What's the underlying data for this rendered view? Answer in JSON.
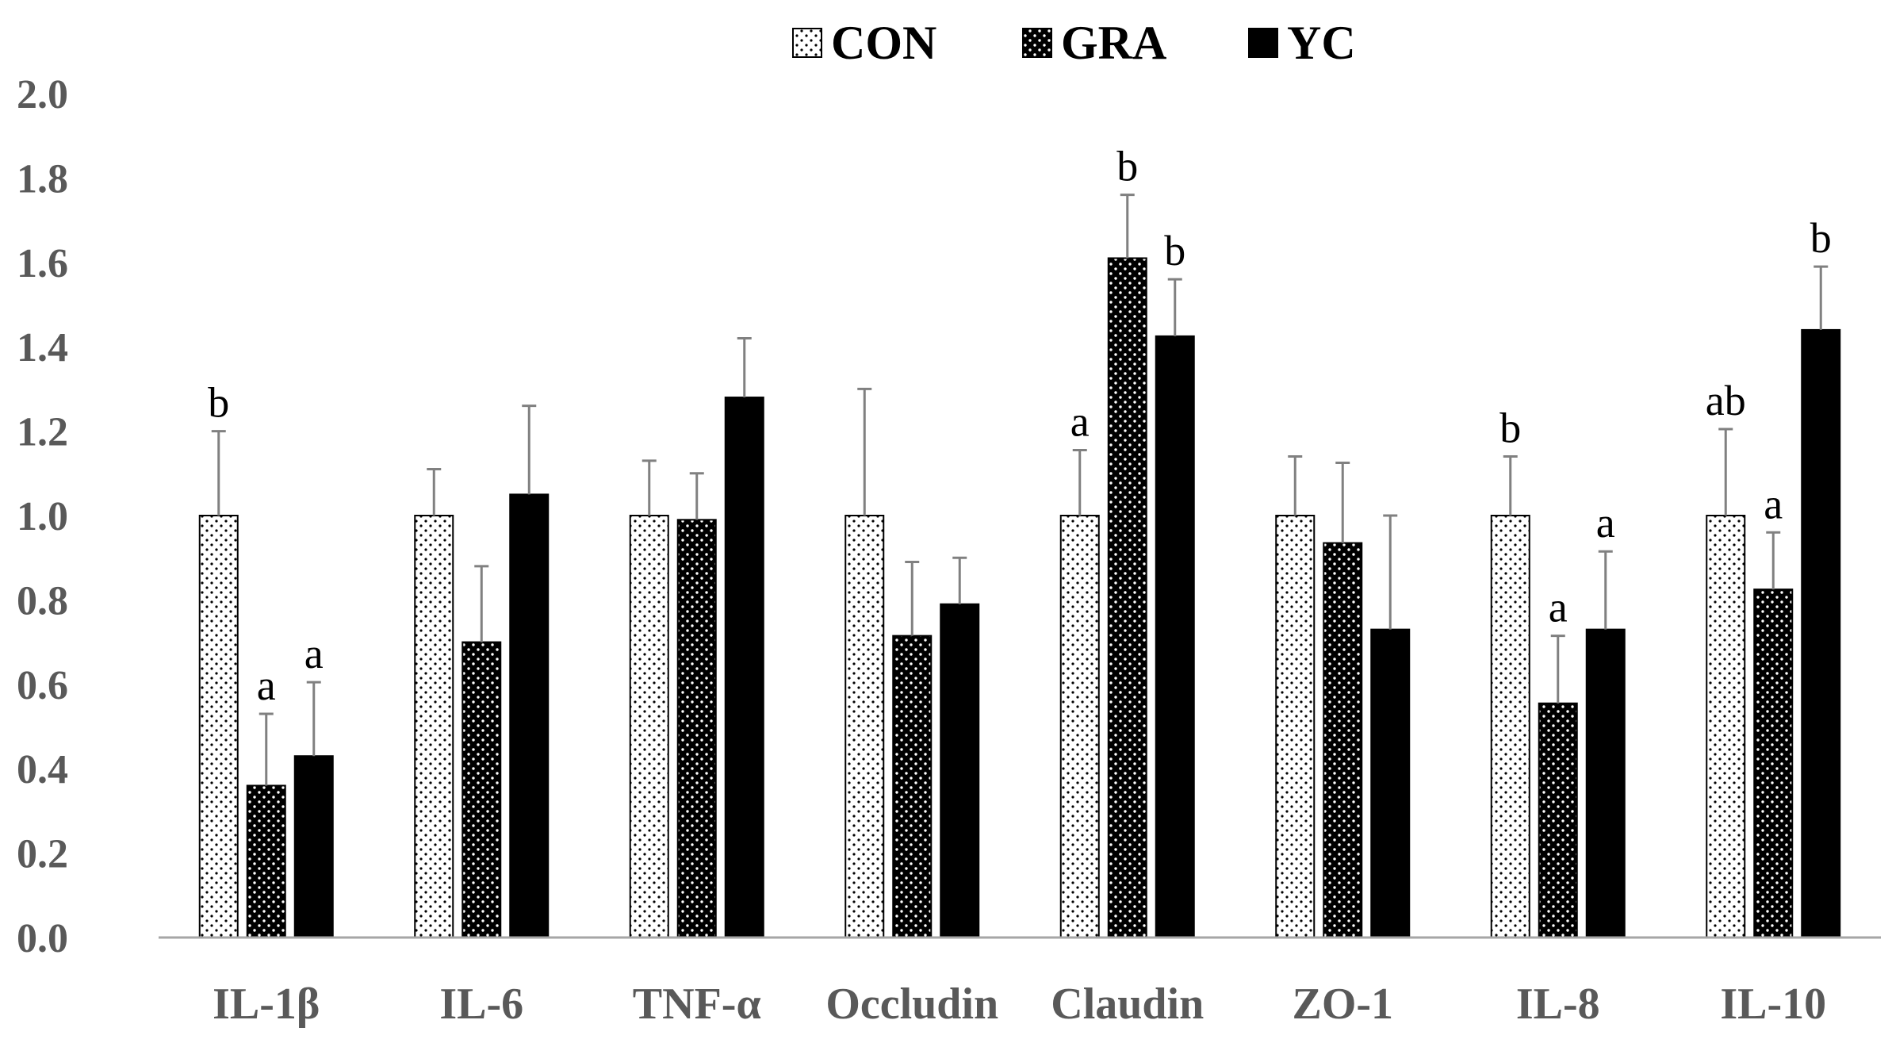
{
  "chart_data": {
    "type": "bar",
    "title": "",
    "xlabel": "",
    "ylabel": "",
    "ylim": [
      0,
      2.0
    ],
    "yticks": [
      "0.0",
      "0.2",
      "0.4",
      "0.6",
      "0.8",
      "1.0",
      "1.2",
      "1.4",
      "1.6",
      "1.8",
      "2.0"
    ],
    "grid": false,
    "legend_position": "top-center",
    "categories": [
      "IL-1β",
      "IL-6",
      "TNF-α",
      "Occludin",
      "Claudin",
      "ZO-1",
      "IL-8",
      "IL-10"
    ],
    "series": [
      {
        "name": "CON",
        "pattern": "sparse-dots",
        "values": [
          1.0,
          1.0,
          1.0,
          1.0,
          1.0,
          1.0,
          1.0,
          1.0
        ],
        "errors": [
          0.2,
          0.11,
          0.13,
          0.3,
          0.155,
          0.14,
          0.14,
          0.205
        ],
        "labels": [
          "b",
          "",
          "",
          "",
          "a",
          "",
          "b",
          "ab"
        ]
      },
      {
        "name": "GRA",
        "pattern": "dense-dots",
        "values": [
          0.36,
          0.7,
          0.99,
          0.715,
          1.61,
          0.935,
          0.555,
          0.825
        ],
        "errors": [
          0.17,
          0.18,
          0.11,
          0.175,
          0.15,
          0.19,
          0.16,
          0.135
        ],
        "labels": [
          "a",
          "",
          "",
          "",
          "b",
          "",
          "a",
          "a"
        ]
      },
      {
        "name": "YC",
        "pattern": "solid",
        "values": [
          0.43,
          1.05,
          1.28,
          0.79,
          1.425,
          0.73,
          0.73,
          1.44
        ],
        "errors": [
          0.175,
          0.21,
          0.14,
          0.11,
          0.135,
          0.27,
          0.185,
          0.15
        ],
        "labels": [
          "a",
          "",
          "",
          "",
          "b",
          "",
          "a",
          "b"
        ]
      }
    ]
  },
  "colors": {
    "axis": "#a6a6a6",
    "tick_text": "#595959",
    "bar_fill": "#000000",
    "error_bar": "#808080"
  }
}
